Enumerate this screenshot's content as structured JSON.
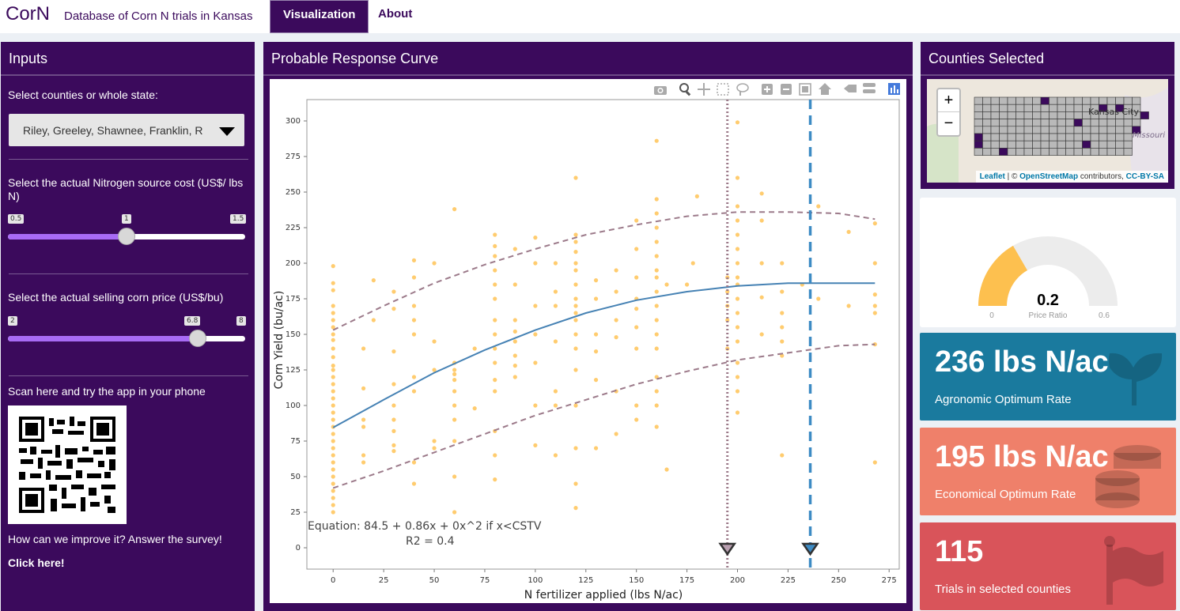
{
  "header": {
    "brand": "CorN",
    "subtitle": "Database of Corn N trials in Kansas",
    "tabs": [
      {
        "label": "Visualization",
        "active": true
      },
      {
        "label": "About",
        "active": false
      }
    ]
  },
  "inputs": {
    "title": "Inputs",
    "county_label": "Select counties or whole state:",
    "county_value": "Riley, Greeley, Shawnee, Franklin, R",
    "n_cost_label": "Select the actual Nitrogen source cost (US$/ lbs N)",
    "n_cost": {
      "min": "0.5",
      "value": "1",
      "max": "1.5",
      "fraction": 0.5
    },
    "corn_price_label": "Select the actual selling corn price (US$/bu)",
    "corn_price": {
      "min": "2",
      "value": "6.8",
      "max": "8",
      "fraction": 0.8
    },
    "scan_label": "Scan here and try the app in your phone",
    "survey_label": "How can we improve it? Answer the survey!",
    "survey_link": "Click here!"
  },
  "curve_panel": {
    "title": "Probable Response Curve"
  },
  "chart_data": {
    "type": "scatter",
    "xlabel": "N fertilizer applied (lbs N/ac)",
    "ylabel": "Corn Yield (bu/ac)",
    "xlim": [
      -13,
      280
    ],
    "ylim": [
      -15,
      315
    ],
    "xticks": [
      0,
      25,
      50,
      75,
      100,
      125,
      150,
      175,
      200,
      225,
      250,
      275
    ],
    "yticks": [
      0,
      25,
      50,
      75,
      100,
      125,
      150,
      175,
      200,
      225,
      250,
      275,
      300
    ],
    "equation_text": "Equation:  84.5 + 0.86x + 0x^2 if x<CSTV",
    "r2_text": "R2 =  0.4",
    "point_color": "#ffb732",
    "fit_color": "#4682b4",
    "band_color": "#9c7a8a",
    "fit_curve": [
      [
        0,
        84.5
      ],
      [
        25,
        104
      ],
      [
        50,
        123
      ],
      [
        75,
        139
      ],
      [
        100,
        153
      ],
      [
        125,
        165
      ],
      [
        150,
        174
      ],
      [
        175,
        180
      ],
      [
        200,
        184
      ],
      [
        225,
        186
      ],
      [
        236,
        186
      ],
      [
        268,
        186
      ]
    ],
    "upper_band": [
      [
        0,
        153
      ],
      [
        25,
        170
      ],
      [
        50,
        186
      ],
      [
        75,
        199
      ],
      [
        100,
        210
      ],
      [
        125,
        220
      ],
      [
        150,
        227
      ],
      [
        175,
        233
      ],
      [
        200,
        236
      ],
      [
        225,
        236
      ],
      [
        250,
        235
      ],
      [
        268,
        231
      ]
    ],
    "lower_band": [
      [
        0,
        42
      ],
      [
        25,
        54
      ],
      [
        50,
        67
      ],
      [
        75,
        80
      ],
      [
        100,
        93
      ],
      [
        125,
        104
      ],
      [
        150,
        115
      ],
      [
        175,
        124
      ],
      [
        200,
        132
      ],
      [
        225,
        137
      ],
      [
        250,
        142
      ],
      [
        268,
        143
      ]
    ],
    "economic_optimum_x": 195,
    "agronomic_optimum_x": 236,
    "points": [
      [
        0,
        198
      ],
      [
        0,
        186
      ],
      [
        0,
        181
      ],
      [
        0,
        170
      ],
      [
        0,
        165
      ],
      [
        0,
        160
      ],
      [
        0,
        155
      ],
      [
        0,
        150
      ],
      [
        0,
        146
      ],
      [
        0,
        140
      ],
      [
        0,
        134
      ],
      [
        0,
        128
      ],
      [
        0,
        125
      ],
      [
        0,
        120
      ],
      [
        0,
        115
      ],
      [
        0,
        110
      ],
      [
        0,
        105
      ],
      [
        0,
        100
      ],
      [
        0,
        95
      ],
      [
        0,
        90
      ],
      [
        0,
        85
      ],
      [
        0,
        80
      ],
      [
        0,
        75
      ],
      [
        0,
        70
      ],
      [
        0,
        65
      ],
      [
        0,
        60
      ],
      [
        0,
        55
      ],
      [
        0,
        50
      ],
      [
        0,
        45
      ],
      [
        0,
        40
      ],
      [
        0,
        35
      ],
      [
        0,
        30
      ],
      [
        0,
        25
      ],
      [
        15,
        60
      ],
      [
        15,
        65
      ],
      [
        15,
        85
      ],
      [
        15,
        90
      ],
      [
        15,
        112
      ],
      [
        15,
        140
      ],
      [
        20,
        160
      ],
      [
        20,
        188
      ],
      [
        30,
        68
      ],
      [
        30,
        72
      ],
      [
        30,
        82
      ],
      [
        30,
        90
      ],
      [
        30,
        100
      ],
      [
        30,
        115
      ],
      [
        30,
        138
      ],
      [
        30,
        168
      ],
      [
        30,
        180
      ],
      [
        40,
        45
      ],
      [
        40,
        60
      ],
      [
        40,
        110
      ],
      [
        40,
        120
      ],
      [
        40,
        150
      ],
      [
        40,
        160
      ],
      [
        40,
        170
      ],
      [
        40,
        190
      ],
      [
        40,
        202
      ],
      [
        50,
        70
      ],
      [
        50,
        75
      ],
      [
        50,
        125
      ],
      [
        50,
        145
      ],
      [
        50,
        200
      ],
      [
        60,
        25
      ],
      [
        60,
        50
      ],
      [
        60,
        75
      ],
      [
        60,
        90
      ],
      [
        60,
        100
      ],
      [
        60,
        110
      ],
      [
        60,
        118
      ],
      [
        60,
        122
      ],
      [
        60,
        125
      ],
      [
        60,
        130
      ],
      [
        60,
        238
      ],
      [
        70,
        98
      ],
      [
        70,
        140
      ],
      [
        80,
        48
      ],
      [
        80,
        65
      ],
      [
        80,
        82
      ],
      [
        80,
        110
      ],
      [
        80,
        118
      ],
      [
        80,
        130
      ],
      [
        80,
        140
      ],
      [
        80,
        150
      ],
      [
        80,
        160
      ],
      [
        80,
        175
      ],
      [
        80,
        185
      ],
      [
        80,
        195
      ],
      [
        80,
        205
      ],
      [
        80,
        212
      ],
      [
        80,
        220
      ],
      [
        90,
        120
      ],
      [
        90,
        128
      ],
      [
        90,
        135
      ],
      [
        90,
        145
      ],
      [
        90,
        152
      ],
      [
        90,
        160
      ],
      [
        90,
        185
      ],
      [
        90,
        210
      ],
      [
        100,
        72
      ],
      [
        100,
        100
      ],
      [
        100,
        130
      ],
      [
        100,
        150
      ],
      [
        100,
        170
      ],
      [
        100,
        200
      ],
      [
        100,
        218
      ],
      [
        110,
        65
      ],
      [
        110,
        100
      ],
      [
        110,
        110
      ],
      [
        110,
        145
      ],
      [
        110,
        170
      ],
      [
        110,
        180
      ],
      [
        110,
        200
      ],
      [
        120,
        28
      ],
      [
        120,
        45
      ],
      [
        120,
        70
      ],
      [
        120,
        100
      ],
      [
        120,
        125
      ],
      [
        120,
        140
      ],
      [
        120,
        150
      ],
      [
        120,
        160
      ],
      [
        120,
        165
      ],
      [
        120,
        170
      ],
      [
        120,
        175
      ],
      [
        120,
        185
      ],
      [
        120,
        195
      ],
      [
        120,
        200
      ],
      [
        120,
        208
      ],
      [
        120,
        215
      ],
      [
        120,
        220
      ],
      [
        120,
        260
      ],
      [
        130,
        70
      ],
      [
        130,
        118
      ],
      [
        130,
        138
      ],
      [
        130,
        150
      ],
      [
        130,
        175
      ],
      [
        130,
        188
      ],
      [
        140,
        80
      ],
      [
        140,
        110
      ],
      [
        140,
        148
      ],
      [
        140,
        160
      ],
      [
        140,
        180
      ],
      [
        140,
        195
      ],
      [
        150,
        90
      ],
      [
        150,
        100
      ],
      [
        150,
        140
      ],
      [
        150,
        155
      ],
      [
        150,
        168
      ],
      [
        150,
        175
      ],
      [
        150,
        190
      ],
      [
        150,
        210
      ],
      [
        150,
        230
      ],
      [
        160,
        85
      ],
      [
        160,
        100
      ],
      [
        160,
        110
      ],
      [
        160,
        120
      ],
      [
        160,
        140
      ],
      [
        160,
        150
      ],
      [
        160,
        160
      ],
      [
        160,
        170
      ],
      [
        160,
        180
      ],
      [
        160,
        190
      ],
      [
        160,
        195
      ],
      [
        160,
        205
      ],
      [
        160,
        215
      ],
      [
        160,
        225
      ],
      [
        160,
        235
      ],
      [
        160,
        245
      ],
      [
        160,
        286
      ],
      [
        165,
        55
      ],
      [
        165,
        185
      ],
      [
        175,
        185
      ],
      [
        178,
        200
      ],
      [
        180,
        247
      ],
      [
        195,
        140
      ],
      [
        195,
        160
      ],
      [
        195,
        170
      ],
      [
        195,
        180
      ],
      [
        195,
        190
      ],
      [
        200,
        95
      ],
      [
        200,
        110
      ],
      [
        200,
        120
      ],
      [
        200,
        130
      ],
      [
        200,
        145
      ],
      [
        200,
        155
      ],
      [
        200,
        165
      ],
      [
        200,
        175
      ],
      [
        200,
        185
      ],
      [
        200,
        190
      ],
      [
        200,
        200
      ],
      [
        200,
        210
      ],
      [
        200,
        220
      ],
      [
        200,
        230
      ],
      [
        200,
        240
      ],
      [
        200,
        260
      ],
      [
        200,
        299
      ],
      [
        212,
        150
      ],
      [
        212,
        176
      ],
      [
        212,
        200
      ],
      [
        212,
        230
      ],
      [
        212,
        249
      ],
      [
        222,
        65
      ],
      [
        222,
        135
      ],
      [
        222,
        145
      ],
      [
        222,
        155
      ],
      [
        222,
        165
      ],
      [
        222,
        180
      ],
      [
        222,
        200
      ],
      [
        232,
        185
      ],
      [
        240,
        240
      ],
      [
        240,
        175
      ],
      [
        255,
        170
      ],
      [
        255,
        222
      ],
      [
        268,
        60
      ],
      [
        268,
        143
      ],
      [
        268,
        165
      ],
      [
        268,
        170
      ],
      [
        268,
        178
      ],
      [
        268,
        200
      ],
      [
        268,
        228
      ]
    ]
  },
  "counties_panel": {
    "title": "Counties Selected",
    "map_city": "Kansas City",
    "map_state": "Missouri",
    "zoom_in": "+",
    "zoom_out": "−",
    "attribution_leaflet": "Leaflet",
    "attribution_sep": "| ©",
    "attribution_osm": "OpenStreetMap",
    "attribution_contrib": "contributors,",
    "attribution_cc": "CC-BY-SA",
    "selected_color": "#3b0a5c"
  },
  "gauge": {
    "value": "0.2",
    "label": "Price Ratio",
    "min": "0",
    "max": "0.6",
    "fraction": 0.333,
    "fill_color": "#fdc04f"
  },
  "value_boxes": [
    {
      "value": "236 lbs N/ac",
      "subtitle": "Agronomic Optimum Rate",
      "color": "#1a7a9e",
      "icon": "seedling-icon"
    },
    {
      "value": "195 lbs N/ac",
      "subtitle": "Economical Optimum Rate",
      "color": "#ef806a",
      "icon": "coins-icon"
    },
    {
      "value": "115",
      "subtitle": "Trials in selected counties",
      "color": "#d9545a",
      "icon": "flag-icon"
    }
  ]
}
